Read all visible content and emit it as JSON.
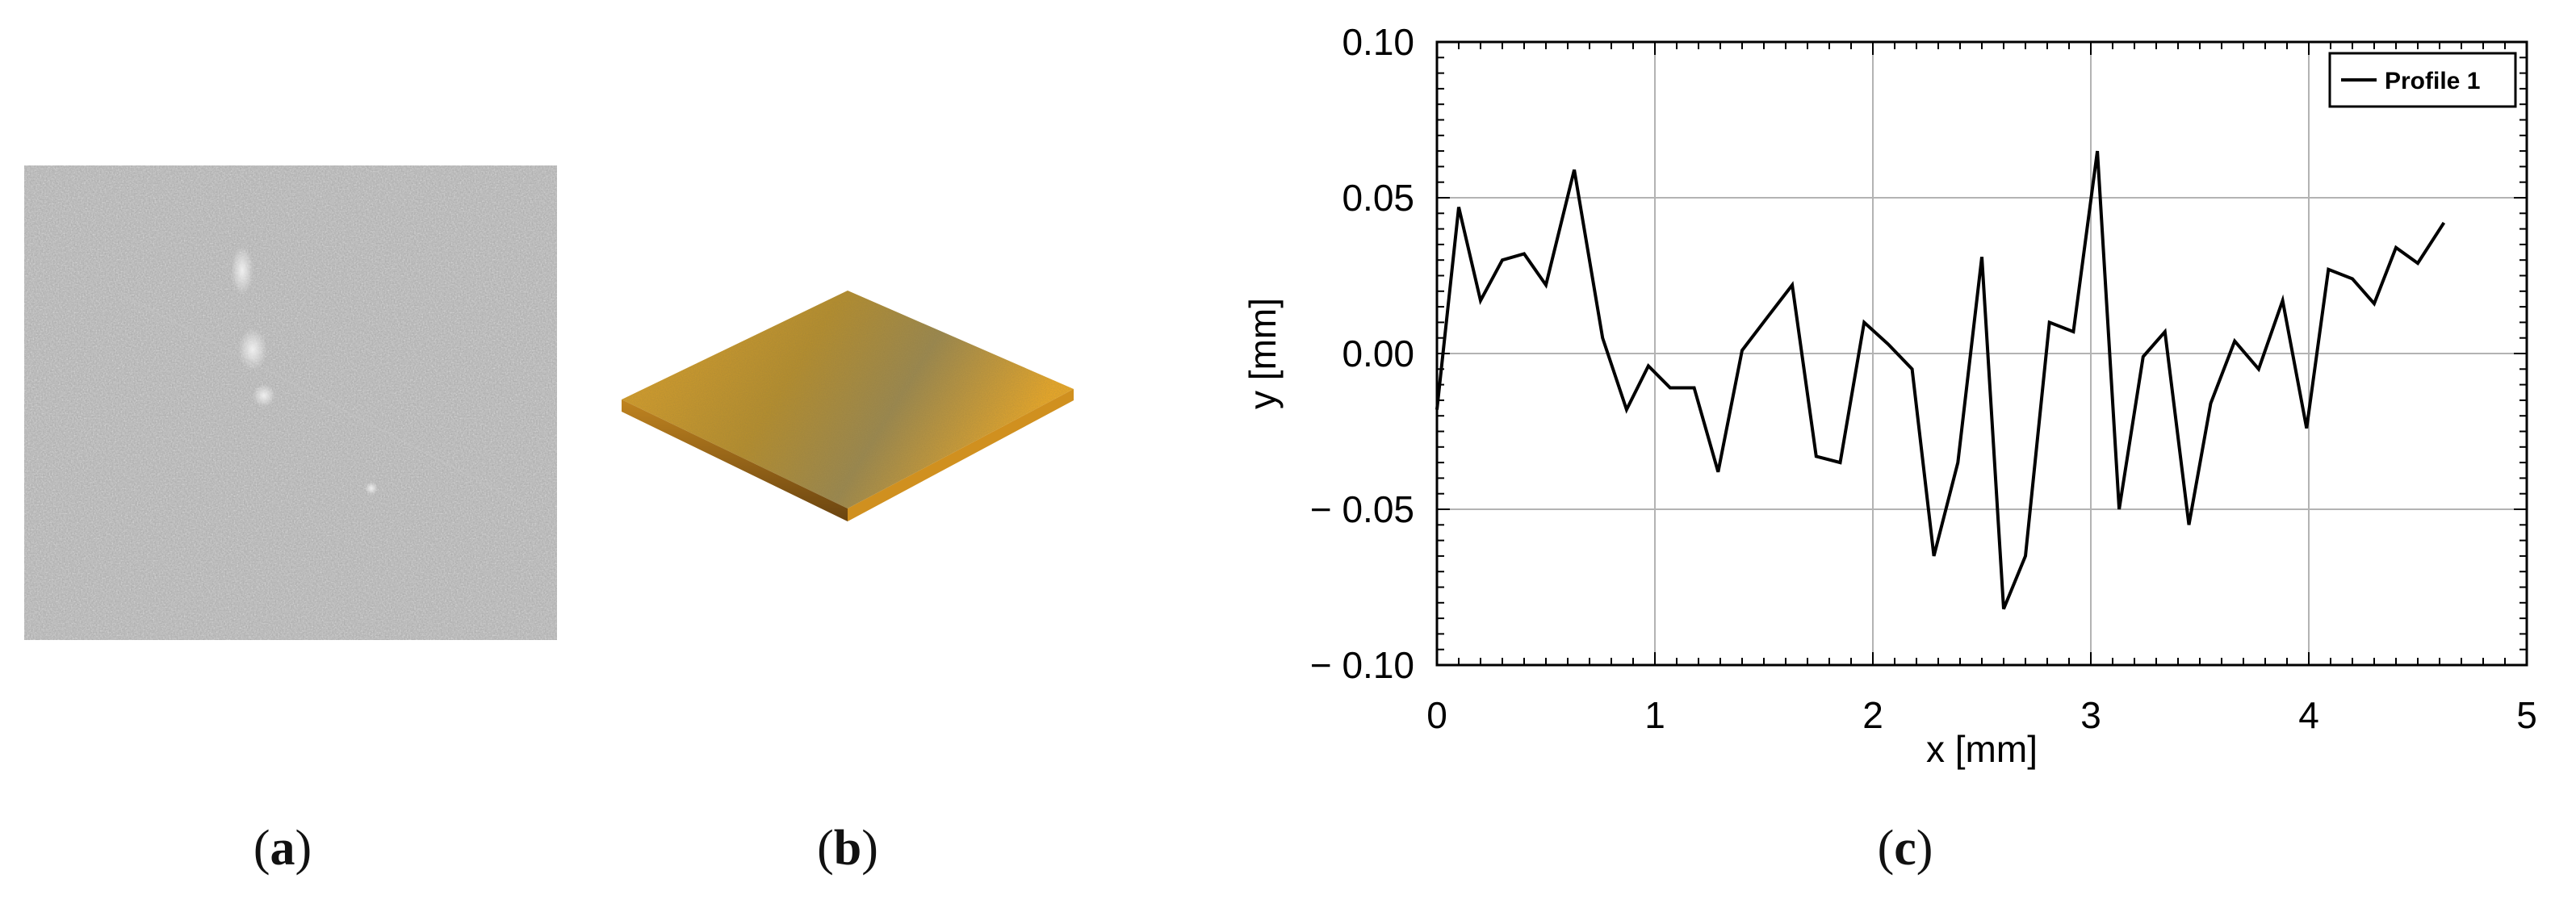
{
  "panels": {
    "a": {
      "label_open": "(",
      "label_letter": "a",
      "label_close": ")"
    },
    "b": {
      "label_open": "(",
      "label_letter": "b",
      "label_close": ")"
    },
    "c": {
      "label_open": "(",
      "label_letter": "c",
      "label_close": ")"
    }
  },
  "chart_data": {
    "type": "line",
    "xlabel": "x [mm]",
    "ylabel": "y [mm]",
    "xlim": [
      0,
      5
    ],
    "ylim": [
      -0.1,
      0.1
    ],
    "x_ticks": [
      "0",
      "1",
      "2",
      "3",
      "4",
      "5"
    ],
    "y_ticks": [
      "0.10",
      "0.05",
      "0.00",
      "− 0.05",
      "− 0.10"
    ],
    "grid": true,
    "legend_position": "top-right",
    "series": [
      {
        "name": "Profile 1",
        "color": "#000000",
        "x": [
          0.0,
          0.1,
          0.2,
          0.3,
          0.4,
          0.5,
          0.63,
          0.76,
          0.87,
          0.97,
          1.07,
          1.18,
          1.29,
          1.4,
          1.52,
          1.63,
          1.74,
          1.85,
          1.96,
          2.07,
          2.18,
          2.28,
          2.39,
          2.5,
          2.6,
          2.7,
          2.81,
          2.92,
          3.03,
          3.13,
          3.24,
          3.34,
          3.45,
          3.55,
          3.66,
          3.77,
          3.88,
          3.99,
          4.09,
          4.2,
          4.3,
          4.4,
          4.5,
          4.62
        ],
        "y": [
          -0.018,
          0.047,
          0.017,
          0.03,
          0.032,
          0.022,
          0.059,
          0.005,
          -0.018,
          -0.004,
          -0.011,
          -0.011,
          -0.038,
          0.001,
          0.012,
          0.022,
          -0.033,
          -0.035,
          0.01,
          0.003,
          -0.005,
          -0.065,
          -0.035,
          0.031,
          -0.082,
          -0.065,
          0.01,
          0.007,
          0.065,
          -0.05,
          -0.001,
          0.007,
          -0.055,
          -0.016,
          0.004,
          -0.005,
          0.017,
          -0.024,
          0.027,
          0.024,
          0.016,
          0.034,
          0.029,
          0.042
        ]
      }
    ]
  }
}
